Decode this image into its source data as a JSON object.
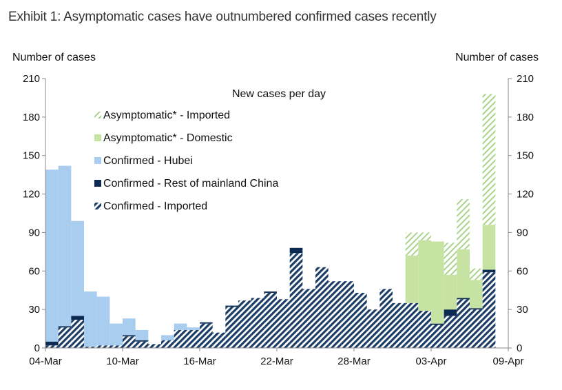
{
  "header": {
    "exhibit_title": "Exhibit 1: Asymptomatic cases have outnumbered confirmed cases recently"
  },
  "chart_data": {
    "type": "bar",
    "stacked": true,
    "title": "New cases per day",
    "ylabel_left": "Number of cases",
    "ylabel_right": "Number of cases",
    "ylim": [
      0,
      210
    ],
    "yticks": [
      0,
      30,
      60,
      90,
      120,
      150,
      180,
      210
    ],
    "xtick_labels": [
      "04-Mar",
      "10-Mar",
      "16-Mar",
      "22-Mar",
      "28-Mar",
      "03-Apr",
      "09-Apr"
    ],
    "categories": [
      "04-Mar",
      "05-Mar",
      "06-Mar",
      "07-Mar",
      "08-Mar",
      "09-Mar",
      "10-Mar",
      "11-Mar",
      "12-Mar",
      "13-Mar",
      "14-Mar",
      "15-Mar",
      "16-Mar",
      "17-Mar",
      "18-Mar",
      "19-Mar",
      "20-Mar",
      "21-Mar",
      "22-Mar",
      "23-Mar",
      "24-Mar",
      "25-Mar",
      "26-Mar",
      "27-Mar",
      "28-Mar",
      "29-Mar",
      "30-Mar",
      "31-Mar",
      "01-Apr",
      "02-Apr",
      "03-Apr",
      "04-Apr",
      "05-Apr",
      "06-Apr",
      "07-Apr",
      "08-Apr"
    ],
    "colors": {
      "imported_confirmed": "#1b3c64",
      "rest_mainland": "#0d2a52",
      "hubei": "#a8cdee",
      "asym_domestic": "#c7e3a3",
      "asym_imported": "#a9d38a",
      "axis": "#888888"
    },
    "series": [
      {
        "name": "Confirmed - Imported",
        "key": "imported_confirmed",
        "values": [
          2,
          16,
          22,
          1,
          2,
          2,
          9,
          5,
          3,
          6,
          14,
          14,
          19,
          12,
          32,
          37,
          39,
          43,
          38,
          74,
          46,
          63,
          52,
          52,
          43,
          30,
          46,
          35,
          35,
          29,
          18,
          25,
          38,
          30,
          59,
          0
        ]
      },
      {
        "name": "Confirmed - Rest of mainland China",
        "key": "rest_mainland",
        "values": [
          3,
          1,
          3,
          0,
          0,
          0,
          1,
          1,
          0,
          0,
          0,
          0,
          1,
          0,
          1,
          0,
          0,
          1,
          0,
          4,
          0,
          0,
          0,
          0,
          0,
          0,
          0,
          0,
          0,
          0,
          1,
          5,
          1,
          1,
          2,
          0
        ]
      },
      {
        "name": "Confirmed - Hubei",
        "key": "hubei",
        "values": [
          134,
          125,
          74,
          43,
          38,
          17,
          13,
          8,
          0,
          4,
          5,
          2,
          0,
          0,
          0,
          0,
          0,
          0,
          0,
          0,
          0,
          0,
          0,
          0,
          0,
          0,
          0,
          0,
          0,
          0,
          0,
          0,
          0,
          0,
          0,
          0
        ]
      },
      {
        "name": "Asymptomatic* - Domestic",
        "key": "asym_domestic",
        "values": [
          0,
          0,
          0,
          0,
          0,
          0,
          0,
          0,
          0,
          0,
          0,
          0,
          0,
          0,
          0,
          0,
          0,
          0,
          0,
          0,
          0,
          0,
          0,
          0,
          0,
          0,
          0,
          0,
          37,
          55,
          64,
          27,
          38,
          22,
          35,
          0
        ]
      },
      {
        "name": "Asymptomatic* - Imported",
        "key": "asym_imported",
        "values": [
          0,
          0,
          0,
          0,
          0,
          0,
          0,
          0,
          0,
          0,
          0,
          0,
          0,
          0,
          0,
          0,
          0,
          0,
          0,
          0,
          0,
          0,
          0,
          0,
          0,
          0,
          0,
          0,
          18,
          6,
          0,
          25,
          39,
          9,
          102,
          0
        ]
      }
    ],
    "legend_order": [
      "asym_imported",
      "asym_domestic",
      "hubei",
      "rest_mainland",
      "imported_confirmed"
    ],
    "legend_position": "top-left"
  }
}
